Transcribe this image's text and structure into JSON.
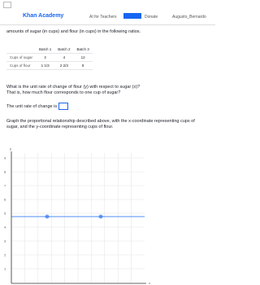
{
  "header": {
    "brand": "Khan Academy",
    "links": [
      "AI for Teachers",
      "Donate",
      "Augusto_Bernardo"
    ]
  },
  "intro": "amounts of sugar (in cups) and flour (in cups) in the following ratios.",
  "table": {
    "columns": [
      "Batch 1",
      "Batch 2",
      "Batch 3"
    ],
    "rows": [
      [
        "Cups of sugar",
        "2",
        "4",
        "12"
      ],
      [
        "Cups of flour",
        "1 1/3",
        "2 2/3",
        "8"
      ]
    ]
  },
  "question": "What is the unit rate of change of flour (y) with respect to sugar (x)?",
  "question_sub": "That is, how much flour corresponds to one cup of sugar?",
  "answer_prompt": "The unit rate of change is",
  "graph_prompt": "Graph the proportional relationship described above, with the x-coordinate representing cups of sugar, and the y-coordinate representing cups of flour.",
  "graph": {
    "y_axis_label": "y",
    "x_axis_label": "x",
    "y_tick_labels": [
      "9",
      "8",
      "7",
      "6",
      "5",
      "4",
      "3",
      "2",
      "1"
    ]
  }
}
